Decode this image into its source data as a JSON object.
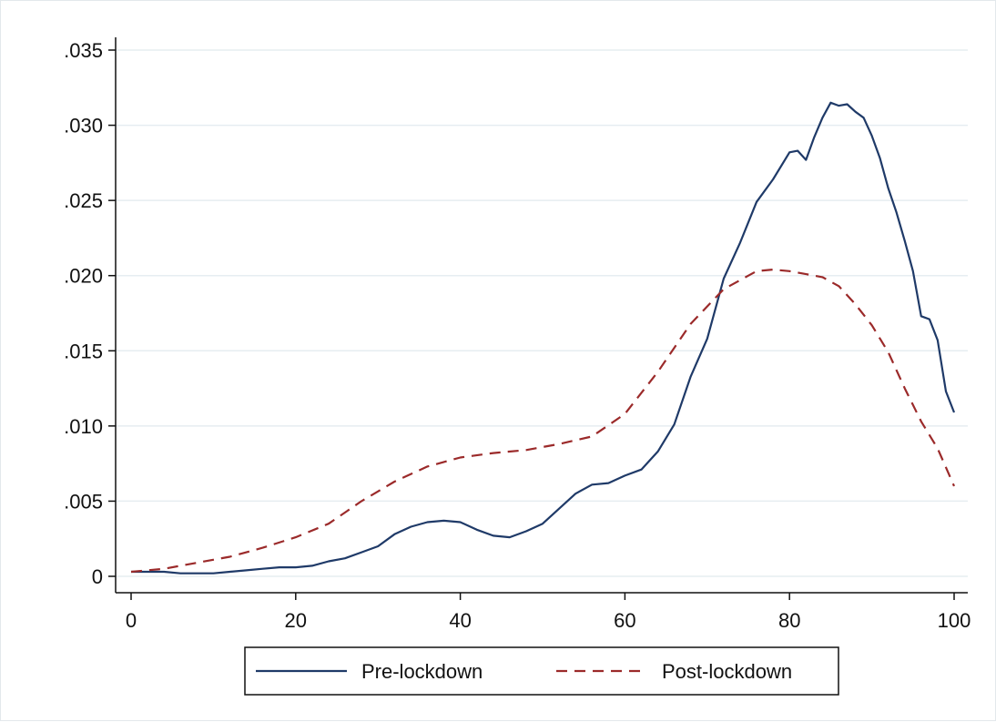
{
  "chart_data": {
    "type": "line",
    "title": "",
    "xlabel": "",
    "ylabel": "",
    "xlim": [
      0,
      100
    ],
    "ylim": [
      0,
      0.035
    ],
    "x_ticks": [
      0,
      20,
      40,
      60,
      80,
      100
    ],
    "x_tick_labels": [
      "0",
      "20",
      "40",
      "60",
      "80",
      "100"
    ],
    "y_ticks": [
      0,
      0.005,
      0.01,
      0.015,
      0.02,
      0.025,
      0.03,
      0.035
    ],
    "y_tick_labels": [
      "0",
      ".005",
      ".010",
      ".015",
      ".020",
      ".025",
      ".030",
      ".035"
    ],
    "grid": "horizontal",
    "legend_position": "bottom",
    "series": [
      {
        "name": "Pre-lockdown",
        "color": "#1f3a68",
        "dash": "solid",
        "x": [
          0,
          2,
          4,
          6,
          8,
          10,
          12,
          14,
          16,
          18,
          20,
          22,
          24,
          26,
          28,
          30,
          32,
          34,
          36,
          38,
          40,
          42,
          44,
          46,
          48,
          50,
          52,
          54,
          56,
          58,
          60,
          62,
          64,
          66,
          68,
          70,
          72,
          74,
          76,
          78,
          80,
          81,
          82,
          83,
          84,
          85,
          86,
          87,
          88,
          89,
          90,
          91,
          92,
          93,
          94,
          95,
          96,
          97,
          98,
          99,
          100
        ],
        "values": [
          0.0003,
          0.0003,
          0.0003,
          0.0002,
          0.0002,
          0.0002,
          0.0003,
          0.0004,
          0.0005,
          0.0006,
          0.0006,
          0.0007,
          0.001,
          0.0012,
          0.0016,
          0.002,
          0.0028,
          0.0033,
          0.0036,
          0.0037,
          0.0036,
          0.0031,
          0.0027,
          0.0026,
          0.003,
          0.0035,
          0.0045,
          0.0055,
          0.0061,
          0.0062,
          0.0067,
          0.0071,
          0.0083,
          0.0101,
          0.0133,
          0.0158,
          0.0198,
          0.0222,
          0.0249,
          0.0264,
          0.0282,
          0.0283,
          0.0277,
          0.0292,
          0.0305,
          0.0315,
          0.0313,
          0.0314,
          0.0309,
          0.0305,
          0.0293,
          0.0278,
          0.0258,
          0.0242,
          0.0223,
          0.0203,
          0.0173,
          0.0171,
          0.0157,
          0.0123,
          0.0109
        ]
      },
      {
        "name": "Post-lockdown",
        "color": "#9b2a2a",
        "dash": "dashed",
        "x": [
          0,
          4,
          8,
          12,
          16,
          20,
          24,
          28,
          32,
          36,
          40,
          44,
          48,
          52,
          56,
          60,
          64,
          68,
          72,
          76,
          78,
          80,
          82,
          84,
          86,
          88,
          90,
          92,
          94,
          96,
          98,
          100
        ],
        "values": [
          0.0003,
          0.0005,
          0.0009,
          0.0013,
          0.0019,
          0.0026,
          0.0035,
          0.005,
          0.0063,
          0.0073,
          0.0079,
          0.0082,
          0.0084,
          0.0088,
          0.0093,
          0.0108,
          0.0136,
          0.0168,
          0.0191,
          0.0203,
          0.0204,
          0.0203,
          0.0201,
          0.0199,
          0.0193,
          0.0181,
          0.0167,
          0.0149,
          0.0125,
          0.0103,
          0.0085,
          0.006
        ]
      }
    ]
  }
}
